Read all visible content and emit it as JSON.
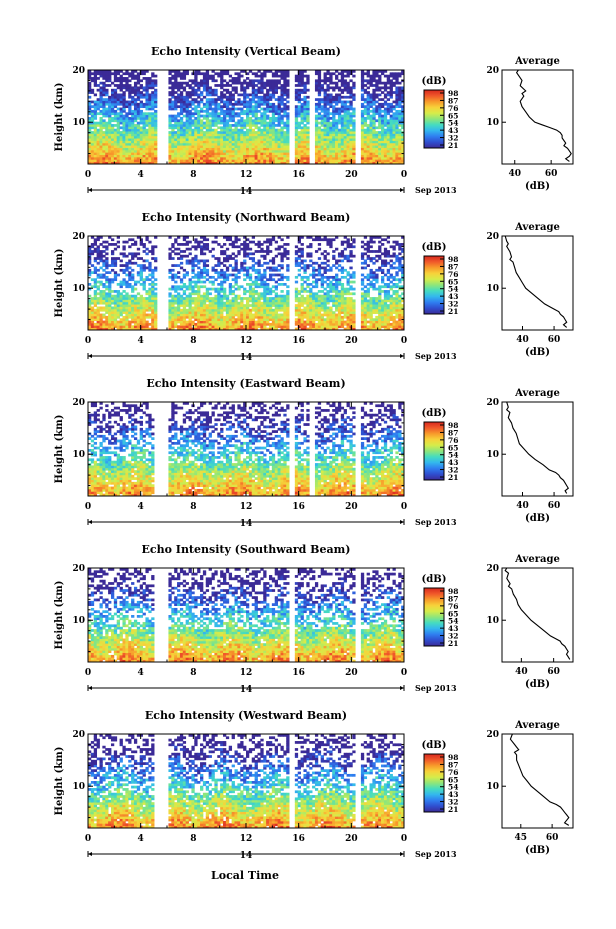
{
  "figure": {
    "bottom_xlabel": "Local Time",
    "date_label": "14",
    "date_suffix": "Sep 2013"
  },
  "colors": {
    "colormap": [
      "#3b2a97",
      "#2f4ecf",
      "#2f7ef0",
      "#33b7ee",
      "#45dcc0",
      "#8fe67a",
      "#d6ec4a",
      "#f7d23a",
      "#f79a2b",
      "#f0582a",
      "#d8281e"
    ]
  },
  "chart_data": [
    {
      "type": "heatmap",
      "title": "Echo Intensity (Vertical Beam)",
      "ylabel": "Height (km)",
      "xlabel": "",
      "xticks": [
        "0",
        "4",
        "8",
        "12",
        "16",
        "20",
        "0"
      ],
      "xlim": [
        0,
        24
      ],
      "yticks": [
        "20",
        "10"
      ],
      "ylim": [
        2,
        20
      ],
      "gaps": [
        [
          5.2,
          6.0
        ],
        [
          15.3,
          15.8
        ],
        [
          16.8,
          17.3
        ],
        [
          20.2,
          20.7
        ]
      ],
      "colorbar": {
        "label": "(dB)",
        "ticks": [
          "98",
          "87",
          "76",
          "65",
          "54",
          "43",
          "32",
          "21"
        ],
        "range": [
          21,
          98
        ]
      },
      "profile": {
        "title": "Average",
        "xlabel": "(dB)",
        "xticks": [
          "40",
          "60"
        ],
        "xlim": [
          33,
          72
        ],
        "yticks": [
          "20",
          "10"
        ],
        "ylim": [
          2,
          20
        ],
        "points": [
          [
            42,
            20
          ],
          [
            41,
            19.5
          ],
          [
            44,
            18
          ],
          [
            43,
            17
          ],
          [
            46,
            16
          ],
          [
            44,
            15.5
          ],
          [
            45,
            15
          ],
          [
            43,
            14
          ],
          [
            44,
            13
          ],
          [
            46,
            12
          ],
          [
            48,
            11
          ],
          [
            51,
            10
          ],
          [
            55,
            9.5
          ],
          [
            59,
            9
          ],
          [
            63,
            8.5
          ],
          [
            65,
            8
          ],
          [
            66,
            7.5
          ],
          [
            66,
            7
          ],
          [
            67,
            6.5
          ],
          [
            68,
            6
          ],
          [
            67,
            5.5
          ],
          [
            69,
            5
          ],
          [
            70,
            4.5
          ],
          [
            71,
            4
          ],
          [
            70,
            3.5
          ],
          [
            68,
            3
          ],
          [
            70,
            2.5
          ]
        ]
      }
    },
    {
      "type": "heatmap",
      "title": "Echo Intensity (Northward Beam)",
      "ylabel": "Height (km)",
      "xlabel": "",
      "xticks": [
        "0",
        "4",
        "8",
        "12",
        "16",
        "20",
        "0"
      ],
      "xlim": [
        0,
        24
      ],
      "yticks": [
        "20",
        "10"
      ],
      "ylim": [
        2,
        20
      ],
      "gaps": [
        [
          5.2,
          6.0
        ],
        [
          15.3,
          15.8
        ],
        [
          20.2,
          20.7
        ]
      ],
      "colorbar": {
        "label": "(dB)",
        "ticks": [
          "98",
          "87",
          "76",
          "65",
          "54",
          "43",
          "32",
          "21"
        ],
        "range": [
          21,
          98
        ]
      },
      "profile": {
        "title": "Average",
        "xlabel": "(dB)",
        "xticks": [
          "40",
          "60"
        ],
        "xlim": [
          27,
          72
        ],
        "yticks": [
          "20",
          "10"
        ],
        "ylim": [
          2,
          20
        ],
        "points": [
          [
            29,
            20
          ],
          [
            30,
            19
          ],
          [
            31,
            18.5
          ],
          [
            30,
            18
          ],
          [
            32,
            17
          ],
          [
            33,
            16
          ],
          [
            32,
            15.5
          ],
          [
            34,
            15
          ],
          [
            35,
            14
          ],
          [
            36,
            13
          ],
          [
            38,
            12
          ],
          [
            40,
            11
          ],
          [
            42,
            10
          ],
          [
            46,
            9
          ],
          [
            50,
            8
          ],
          [
            54,
            7
          ],
          [
            57,
            6.5
          ],
          [
            60,
            6
          ],
          [
            63,
            5.5
          ],
          [
            64,
            5
          ],
          [
            66,
            4.5
          ],
          [
            67,
            4
          ],
          [
            68,
            3.5
          ],
          [
            66,
            3
          ],
          [
            68,
            2.5
          ]
        ]
      }
    },
    {
      "type": "heatmap",
      "title": "Echo Intensity (Eastward Beam)",
      "ylabel": "Height (km)",
      "xlabel": "",
      "xticks": [
        "0",
        "4",
        "8",
        "12",
        "16",
        "20",
        "0"
      ],
      "xlim": [
        0,
        24
      ],
      "yticks": [
        "20",
        "10"
      ],
      "ylim": [
        2,
        20
      ],
      "gaps": [
        [
          5.0,
          6.0
        ],
        [
          15.2,
          15.7
        ],
        [
          16.9,
          17.2
        ],
        [
          20.2,
          20.7
        ]
      ],
      "colorbar": {
        "label": "(dB)",
        "ticks": [
          "98",
          "87",
          "76",
          "65",
          "54",
          "43",
          "32",
          "21"
        ],
        "range": [
          21,
          98
        ]
      },
      "profile": {
        "title": "Average",
        "xlabel": "(dB)",
        "xticks": [
          "40",
          "60"
        ],
        "xlim": [
          27,
          72
        ],
        "yticks": [
          "20",
          "10"
        ],
        "ylim": [
          2,
          20
        ],
        "points": [
          [
            30,
            20
          ],
          [
            31,
            19
          ],
          [
            30,
            18.5
          ],
          [
            32,
            18
          ],
          [
            31,
            17
          ],
          [
            33,
            16
          ],
          [
            34,
            15
          ],
          [
            36,
            14
          ],
          [
            37,
            13
          ],
          [
            38,
            12
          ],
          [
            41,
            11
          ],
          [
            44,
            10
          ],
          [
            48,
            9
          ],
          [
            53,
            8
          ],
          [
            57,
            7
          ],
          [
            61,
            6.5
          ],
          [
            63,
            6
          ],
          [
            64,
            5.5
          ],
          [
            66,
            5
          ],
          [
            67,
            4.5
          ],
          [
            68,
            4
          ],
          [
            69,
            3.5
          ],
          [
            67,
            3
          ],
          [
            68,
            2.5
          ]
        ]
      }
    },
    {
      "type": "heatmap",
      "title": "Echo Intensity (Southward Beam)",
      "ylabel": "Height (km)",
      "xlabel": "",
      "xticks": [
        "0",
        "4",
        "8",
        "12",
        "16",
        "20",
        "0"
      ],
      "xlim": [
        0,
        24
      ],
      "yticks": [
        "20",
        "10"
      ],
      "ylim": [
        2,
        20
      ],
      "gaps": [
        [
          5.1,
          6.0
        ],
        [
          15.2,
          15.7
        ],
        [
          20.2,
          20.7
        ]
      ],
      "colorbar": {
        "label": "(dB)",
        "ticks": [
          "98",
          "87",
          "76",
          "65",
          "54",
          "43",
          "32",
          "21"
        ],
        "range": [
          21,
          98
        ]
      },
      "profile": {
        "title": "Average",
        "xlabel": "(dB)",
        "xticks": [
          "40",
          "60"
        ],
        "xlim": [
          28,
          72
        ],
        "yticks": [
          "20",
          "10"
        ],
        "ylim": [
          2,
          20
        ],
        "points": [
          [
            31,
            20
          ],
          [
            30,
            19.5
          ],
          [
            32,
            19
          ],
          [
            31,
            18
          ],
          [
            33,
            17
          ],
          [
            32,
            16.5
          ],
          [
            34,
            16
          ],
          [
            35,
            15
          ],
          [
            37,
            14
          ],
          [
            38,
            13
          ],
          [
            40,
            12
          ],
          [
            43,
            11
          ],
          [
            46,
            10
          ],
          [
            50,
            9
          ],
          [
            54,
            8
          ],
          [
            58,
            7
          ],
          [
            61,
            6.5
          ],
          [
            64,
            6
          ],
          [
            65,
            5.5
          ],
          [
            67,
            5
          ],
          [
            68,
            4.5
          ],
          [
            69,
            4
          ],
          [
            68,
            3.5
          ],
          [
            69,
            3
          ],
          [
            70,
            2.5
          ]
        ]
      }
    },
    {
      "type": "heatmap",
      "title": "Echo Intensity (Westward Beam)",
      "ylabel": "Height (km)",
      "xlabel": "",
      "xticks": [
        "0",
        "4",
        "8",
        "12",
        "16",
        "20",
        "0"
      ],
      "xlim": [
        0,
        24
      ],
      "yticks": [
        "20",
        "10"
      ],
      "ylim": [
        2,
        20
      ],
      "gaps": [
        [
          5.1,
          6.0
        ],
        [
          15.2,
          15.7
        ],
        [
          20.2,
          20.7
        ]
      ],
      "colorbar": {
        "label": "(dB)",
        "ticks": [
          "98",
          "87",
          "76",
          "65",
          "54",
          "43",
          "32",
          "21"
        ],
        "range": [
          21,
          98
        ]
      },
      "profile": {
        "title": "Average",
        "xlabel": "(dB)",
        "xticks": [
          "45",
          "60"
        ],
        "xlim": [
          36,
          70
        ],
        "yticks": [
          "20",
          "10"
        ],
        "ylim": [
          2,
          20
        ],
        "points": [
          [
            41,
            20
          ],
          [
            40,
            19
          ],
          [
            42,
            18
          ],
          [
            43,
            17.5
          ],
          [
            44,
            17
          ],
          [
            42,
            16.5
          ],
          [
            43,
            16
          ],
          [
            43,
            15
          ],
          [
            44,
            14
          ],
          [
            45,
            13
          ],
          [
            46,
            12
          ],
          [
            48,
            11
          ],
          [
            50,
            10
          ],
          [
            53,
            9
          ],
          [
            56,
            8
          ],
          [
            59,
            7
          ],
          [
            62,
            6.5
          ],
          [
            64,
            6
          ],
          [
            65,
            5.5
          ],
          [
            66,
            5
          ],
          [
            67,
            4.5
          ],
          [
            68,
            4
          ],
          [
            67,
            3.5
          ],
          [
            66,
            3
          ],
          [
            68,
            2.5
          ]
        ]
      }
    }
  ]
}
